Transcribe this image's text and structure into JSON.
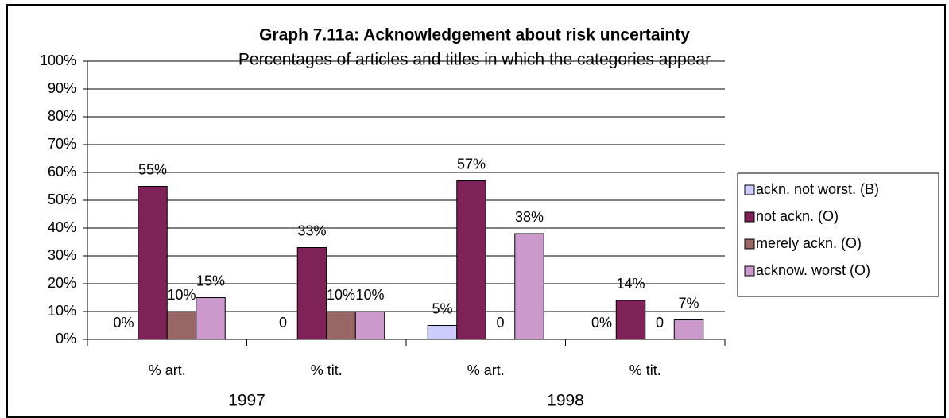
{
  "chart_data": {
    "type": "bar",
    "title": "Graph 7.11a: Acknowledgement about risk uncertainty",
    "subtitle": "Percentages of articles and titles in which the categories appear",
    "categories": [
      "% art.",
      "% tit.",
      "% art.",
      "% tit."
    ],
    "category_groups": [
      "1997",
      "1998"
    ],
    "series": [
      {
        "name": "ackn. not worst. (B)",
        "color": "#ccccff",
        "values": [
          0,
          0,
          5,
          0
        ],
        "value_labels": [
          "0%",
          "0",
          "5%",
          "0%"
        ]
      },
      {
        "name": "not ackn. (O)",
        "color": "#7f2258",
        "values": [
          55,
          33,
          57,
          14
        ],
        "value_labels": [
          "55%",
          "33%",
          "57%",
          "14%"
        ]
      },
      {
        "name": "merely ackn. (O)",
        "color": "#996666",
        "values": [
          10,
          10,
          0,
          0
        ],
        "value_labels": [
          "10%",
          "10%",
          "0",
          "0"
        ]
      },
      {
        "name": "acknow. worst (O)",
        "color": "#cc99cc",
        "values": [
          15,
          10,
          38,
          7
        ],
        "value_labels": [
          "15%",
          "10%",
          "38%",
          "7%"
        ]
      }
    ],
    "ylim": [
      0,
      100
    ],
    "yticks": [
      {
        "value": 0,
        "label": "0%"
      },
      {
        "value": 10,
        "label": "10%"
      },
      {
        "value": 20,
        "label": "20%"
      },
      {
        "value": 30,
        "label": "30%"
      },
      {
        "value": 40,
        "label": "40%"
      },
      {
        "value": 50,
        "label": "50%"
      },
      {
        "value": 60,
        "label": "60%"
      },
      {
        "value": 70,
        "label": "70%"
      },
      {
        "value": 80,
        "label": "80%"
      },
      {
        "value": 90,
        "label": "90%"
      },
      {
        "value": 100,
        "label": "100%"
      }
    ],
    "grid": true,
    "legend": "right"
  }
}
